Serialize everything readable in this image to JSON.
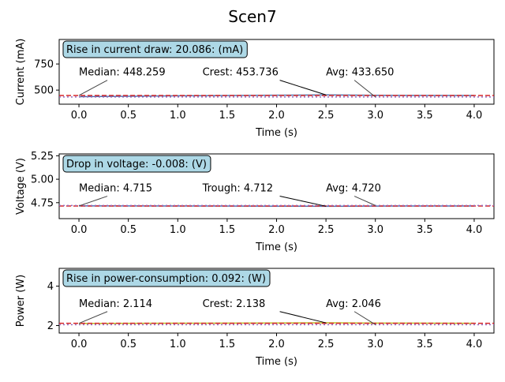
{
  "figure": {
    "title": "Scen7"
  },
  "chart_data": [
    {
      "type": "line",
      "xlabel": "Time (s)",
      "ylabel": "Current (mA)",
      "xlim": [
        -0.2,
        4.2
      ],
      "ylim": [
        365,
        985
      ],
      "xticks": [
        "0.0",
        "0.5",
        "1.0",
        "1.5",
        "2.0",
        "2.5",
        "3.0",
        "3.5",
        "4.0"
      ],
      "yticks": [
        "500",
        "750"
      ],
      "ytick_values": [
        500,
        750
      ],
      "series": [
        {
          "role": "signal",
          "color": "#4c72b0",
          "x": [
            0,
            1,
            2,
            2.5,
            3,
            4
          ],
          "y": [
            437,
            445,
            451,
            453.736,
            450,
            448
          ]
        }
      ],
      "hlines": [
        {
          "value": 448.259,
          "color": "#d62728",
          "style": "dashed"
        },
        {
          "value": 433.65,
          "color": "#9467bd",
          "style": "dotted"
        }
      ],
      "info_box": "Rise in current draw: 20.086: (mA)",
      "annotations": [
        {
          "text": "Median: 448.259",
          "x": 0.0,
          "y": 448.259,
          "text_x": 0.0,
          "text_y": 640
        },
        {
          "text": "Crest: 453.736",
          "x": 2.5,
          "y": 453.736,
          "text_x": 1.25,
          "text_y": 640
        },
        {
          "text": "Avg: 433.650",
          "x": 3.0,
          "y": 433.65,
          "text_x": 2.5,
          "text_y": 640
        }
      ]
    },
    {
      "type": "line",
      "xlabel": "Time (s)",
      "ylabel": "Voltage (V)",
      "xlim": [
        -0.2,
        4.2
      ],
      "ylim": [
        4.58,
        5.27
      ],
      "xticks": [
        "0.0",
        "0.5",
        "1.0",
        "1.5",
        "2.0",
        "2.5",
        "3.0",
        "3.5",
        "4.0"
      ],
      "yticks": [
        "4.75",
        "5.00",
        "5.25"
      ],
      "ytick_values": [
        4.75,
        5.0,
        5.25
      ],
      "series": [
        {
          "role": "signal",
          "color": "#4c72b0",
          "x": [
            0,
            1,
            2,
            2.5,
            3,
            4
          ],
          "y": [
            4.716,
            4.715,
            4.713,
            4.712,
            4.714,
            4.715
          ]
        }
      ],
      "hlines": [
        {
          "value": 4.715,
          "color": "#d62728",
          "style": "dashed"
        },
        {
          "value": 4.72,
          "color": "#9467bd",
          "style": "dotted"
        }
      ],
      "info_box": "Drop in voltage: -0.008: (V)",
      "annotations": [
        {
          "text": "Median: 4.715",
          "x": 0.0,
          "y": 4.715,
          "text_x": 0.0,
          "text_y": 4.87
        },
        {
          "text": "Trough: 4.712",
          "x": 2.5,
          "y": 4.712,
          "text_x": 1.25,
          "text_y": 4.87
        },
        {
          "text": "Avg: 4.720",
          "x": 3.0,
          "y": 4.72,
          "text_x": 2.5,
          "text_y": 4.87
        }
      ]
    },
    {
      "type": "line",
      "xlabel": "Time (s)",
      "ylabel": "Power (W)",
      "xlim": [
        -0.2,
        4.2
      ],
      "ylim": [
        1.62,
        4.9
      ],
      "xticks": [
        "0.0",
        "0.5",
        "1.0",
        "1.5",
        "2.0",
        "2.5",
        "3.0",
        "3.5",
        "4.0"
      ],
      "yticks": [
        "2",
        "4"
      ],
      "ytick_values": [
        2,
        4
      ],
      "series": [
        {
          "role": "signal",
          "color": "#bcbd22",
          "x": [
            0,
            1,
            2,
            2.5,
            3,
            4
          ],
          "y": [
            2.11,
            2.12,
            2.13,
            2.138,
            2.125,
            2.116
          ]
        }
      ],
      "hlines": [
        {
          "value": 2.114,
          "color": "#d62728",
          "style": "dashed"
        },
        {
          "value": 2.046,
          "color": "#9467bd",
          "style": "dotted"
        }
      ],
      "info_box": "Rise in power-consumption: 0.092: (W)",
      "annotations": [
        {
          "text": "Median: 2.114",
          "x": 0.0,
          "y": 2.114,
          "text_x": 0.0,
          "text_y": 2.95
        },
        {
          "text": "Crest: 2.138",
          "x": 2.5,
          "y": 2.138,
          "text_x": 1.25,
          "text_y": 2.95
        },
        {
          "text": "Avg: 2.046",
          "x": 3.0,
          "y": 2.046,
          "text_x": 2.5,
          "text_y": 2.95
        }
      ]
    }
  ]
}
